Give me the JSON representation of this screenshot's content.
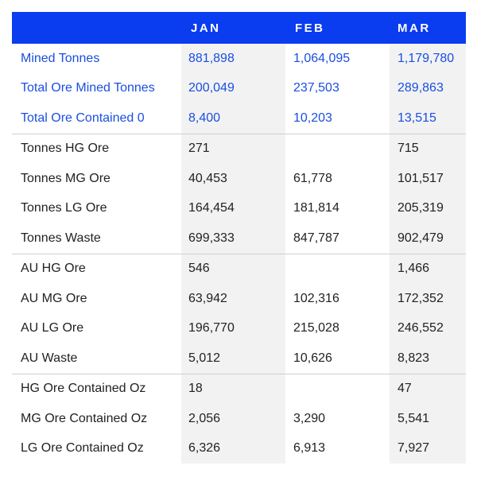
{
  "header": {
    "label": "",
    "months": [
      "JAN",
      "FEB",
      "MAR"
    ]
  },
  "groups": [
    {
      "style": "blue",
      "rows": [
        {
          "label": "Mined Tonnes",
          "jan": "881,898",
          "feb": "1,064,095",
          "mar": "1,179,780"
        },
        {
          "label": "Total Ore Mined Tonnes",
          "jan": "200,049",
          "feb": "237,503",
          "mar": "289,863"
        },
        {
          "label": "Total Ore Contained 0",
          "jan": "8,400",
          "feb": "10,203",
          "mar": "13,515"
        }
      ]
    },
    {
      "style": "dark",
      "rows": [
        {
          "label": "Tonnes HG Ore",
          "jan": "271",
          "feb": "",
          "mar": "715"
        },
        {
          "label": "Tonnes MG Ore",
          "jan": "40,453",
          "feb": "61,778",
          "mar": "101,517"
        },
        {
          "label": "Tonnes LG Ore",
          "jan": "164,454",
          "feb": "181,814",
          "mar": "205,319"
        },
        {
          "label": "Tonnes Waste",
          "jan": "699,333",
          "feb": "847,787",
          "mar": "902,479"
        }
      ]
    },
    {
      "style": "dark",
      "rows": [
        {
          "label": "AU HG Ore",
          "jan": "546",
          "feb": "",
          "mar": "1,466"
        },
        {
          "label": "AU MG Ore",
          "jan": "63,942",
          "feb": "102,316",
          "mar": "172,352"
        },
        {
          "label": "AU LG Ore",
          "jan": "196,770",
          "feb": "215,028",
          "mar": "246,552"
        },
        {
          "label": "AU Waste",
          "jan": "5,012",
          "feb": "10,626",
          "mar": "8,823"
        }
      ]
    },
    {
      "style": "dark",
      "rows": [
        {
          "label": "HG Ore Contained Oz",
          "jan": "18",
          "feb": "",
          "mar": "47"
        },
        {
          "label": "MG Ore Contained Oz",
          "jan": "2,056",
          "feb": "3,290",
          "mar": "5,541"
        },
        {
          "label": "LG Ore Contained Oz",
          "jan": "6,326",
          "feb": "6,913",
          "mar": "7,927"
        }
      ]
    }
  ]
}
